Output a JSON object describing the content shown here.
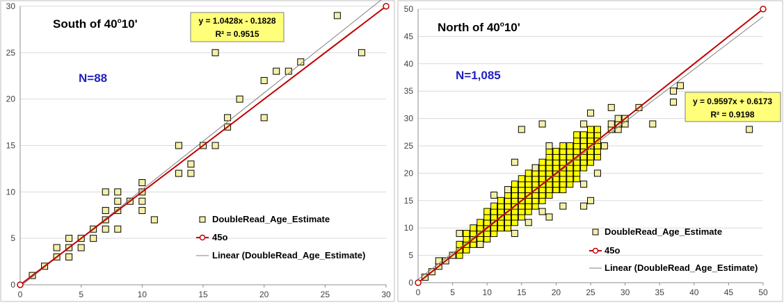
{
  "chart_data": [
    {
      "type": "scatter",
      "title_main": "South of 40",
      "title_sup": "o",
      "title_tail": "10'",
      "n_label": "N=88",
      "equation_line1": "y = 1.0428x - 0.1828",
      "equation_line2": "R² = 0.9515",
      "xlim": [
        0,
        30
      ],
      "ylim": [
        0,
        30
      ],
      "xticks": [
        "0",
        "5",
        "10",
        "15",
        "20",
        "25",
        "30"
      ],
      "yticks": [
        "0",
        "5",
        "10",
        "15",
        "20",
        "25",
        "30"
      ],
      "grid": "horizontal",
      "legend_position": "bottom-right",
      "legend": [
        "DoubleRead_Age_Estimate",
        "45o",
        "Linear (DoubleRead_Age_Estimate)"
      ],
      "series": [
        {
          "name": "DoubleRead_Age_Estimate",
          "marker_color": "#f5f0a8",
          "points": [
            [
              1,
              1
            ],
            [
              2,
              2
            ],
            [
              3,
              3
            ],
            [
              3,
              4
            ],
            [
              4,
              3
            ],
            [
              4,
              4
            ],
            [
              4,
              5
            ],
            [
              5,
              4
            ],
            [
              5,
              5
            ],
            [
              6,
              5
            ],
            [
              6,
              6
            ],
            [
              7,
              6
            ],
            [
              7,
              7
            ],
            [
              7,
              8
            ],
            [
              7,
              10
            ],
            [
              8,
              6
            ],
            [
              8,
              8
            ],
            [
              8,
              9
            ],
            [
              8,
              10
            ],
            [
              9,
              9
            ],
            [
              10,
              8
            ],
            [
              10,
              9
            ],
            [
              10,
              10
            ],
            [
              10,
              11
            ],
            [
              11,
              7
            ],
            [
              13,
              12
            ],
            [
              13,
              15
            ],
            [
              14,
              12
            ],
            [
              14,
              13
            ],
            [
              15,
              15
            ],
            [
              16,
              15
            ],
            [
              16,
              25
            ],
            [
              17,
              17
            ],
            [
              17,
              18
            ],
            [
              18,
              20
            ],
            [
              20,
              18
            ],
            [
              20,
              22
            ],
            [
              21,
              23
            ],
            [
              22,
              23
            ],
            [
              23,
              24
            ],
            [
              26,
              29
            ],
            [
              28,
              25
            ]
          ]
        },
        {
          "name": "45o",
          "line_color": "#c00000",
          "points": [
            [
              0,
              0
            ],
            [
              30,
              30
            ]
          ]
        },
        {
          "name": "Linear (DoubleRead_Age_Estimate)",
          "line_color": "#808080",
          "slope": 1.0428,
          "intercept": -0.1828
        }
      ]
    },
    {
      "type": "scatter",
      "title_main": "North of 40",
      "title_sup": "o",
      "title_tail": "10'",
      "n_label": "N=1,085",
      "equation_line1": "y = 0.9597x + 0.6173",
      "equation_line2": "R² = 0.9198",
      "xlim": [
        0,
        50
      ],
      "ylim": [
        0,
        50
      ],
      "xticks": [
        "0",
        "5",
        "10",
        "15",
        "20",
        "25",
        "30",
        "35",
        "40",
        "45",
        "50"
      ],
      "yticks": [
        "0",
        "5",
        "10",
        "15",
        "20",
        "25",
        "30",
        "35",
        "40",
        "45",
        "50"
      ],
      "grid": "horizontal",
      "legend_position": "bottom-right",
      "legend": [
        "DoubleRead_Age_Estimate",
        "45o",
        "Linear (DoubleRead_Age_Estimate)"
      ],
      "series": [
        {
          "name": "DoubleRead_Age_Estimate",
          "marker_color": "#f5f0a8",
          "band_fill": "#ffff00",
          "band": [
            [
              6,
              5,
              7
            ],
            [
              7,
              6,
              9
            ],
            [
              8,
              7,
              10
            ],
            [
              9,
              7,
              11
            ],
            [
              10,
              8,
              13
            ],
            [
              11,
              9,
              14
            ],
            [
              12,
              10,
              15
            ],
            [
              13,
              10,
              16
            ],
            [
              14,
              11,
              18
            ],
            [
              15,
              12,
              19
            ],
            [
              16,
              13,
              20
            ],
            [
              17,
              14,
              21
            ],
            [
              18,
              15,
              22
            ],
            [
              19,
              16,
              25
            ],
            [
              20,
              17,
              24
            ],
            [
              21,
              17,
              25
            ],
            [
              22,
              18,
              25
            ],
            [
              23,
              19,
              27
            ],
            [
              24,
              21,
              27
            ],
            [
              25,
              22,
              28
            ],
            [
              26,
              23,
              28
            ]
          ],
          "points": [
            [
              1,
              1
            ],
            [
              2,
              2
            ],
            [
              3,
              3
            ],
            [
              3,
              4
            ],
            [
              4,
              4
            ],
            [
              5,
              5
            ],
            [
              6,
              9
            ],
            [
              9,
              7
            ],
            [
              11,
              16
            ],
            [
              13,
              17
            ],
            [
              14,
              9
            ],
            [
              14,
              22
            ],
            [
              15,
              28
            ],
            [
              16,
              11
            ],
            [
              17,
              21
            ],
            [
              18,
              13
            ],
            [
              18,
              29
            ],
            [
              19,
              12
            ],
            [
              19,
              25
            ],
            [
              21,
              14
            ],
            [
              24,
              14
            ],
            [
              24,
              18
            ],
            [
              24,
              29
            ],
            [
              25,
              15
            ],
            [
              25,
              31
            ],
            [
              26,
              20
            ],
            [
              27,
              25
            ],
            [
              28,
              28
            ],
            [
              28,
              29
            ],
            [
              28,
              32
            ],
            [
              29,
              28
            ],
            [
              29,
              29
            ],
            [
              29,
              30
            ],
            [
              30,
              29
            ],
            [
              30,
              30
            ],
            [
              32,
              32
            ],
            [
              34,
              29
            ],
            [
              37,
              33
            ],
            [
              37,
              35
            ],
            [
              38,
              36
            ],
            [
              48,
              28
            ]
          ]
        },
        {
          "name": "45o",
          "line_color": "#c00000",
          "points": [
            [
              0,
              0
            ],
            [
              50,
              50
            ]
          ]
        },
        {
          "name": "Linear (DoubleRead_Age_Estimate)",
          "line_color": "#808080",
          "slope": 0.9597,
          "intercept": 0.6173
        }
      ]
    }
  ]
}
